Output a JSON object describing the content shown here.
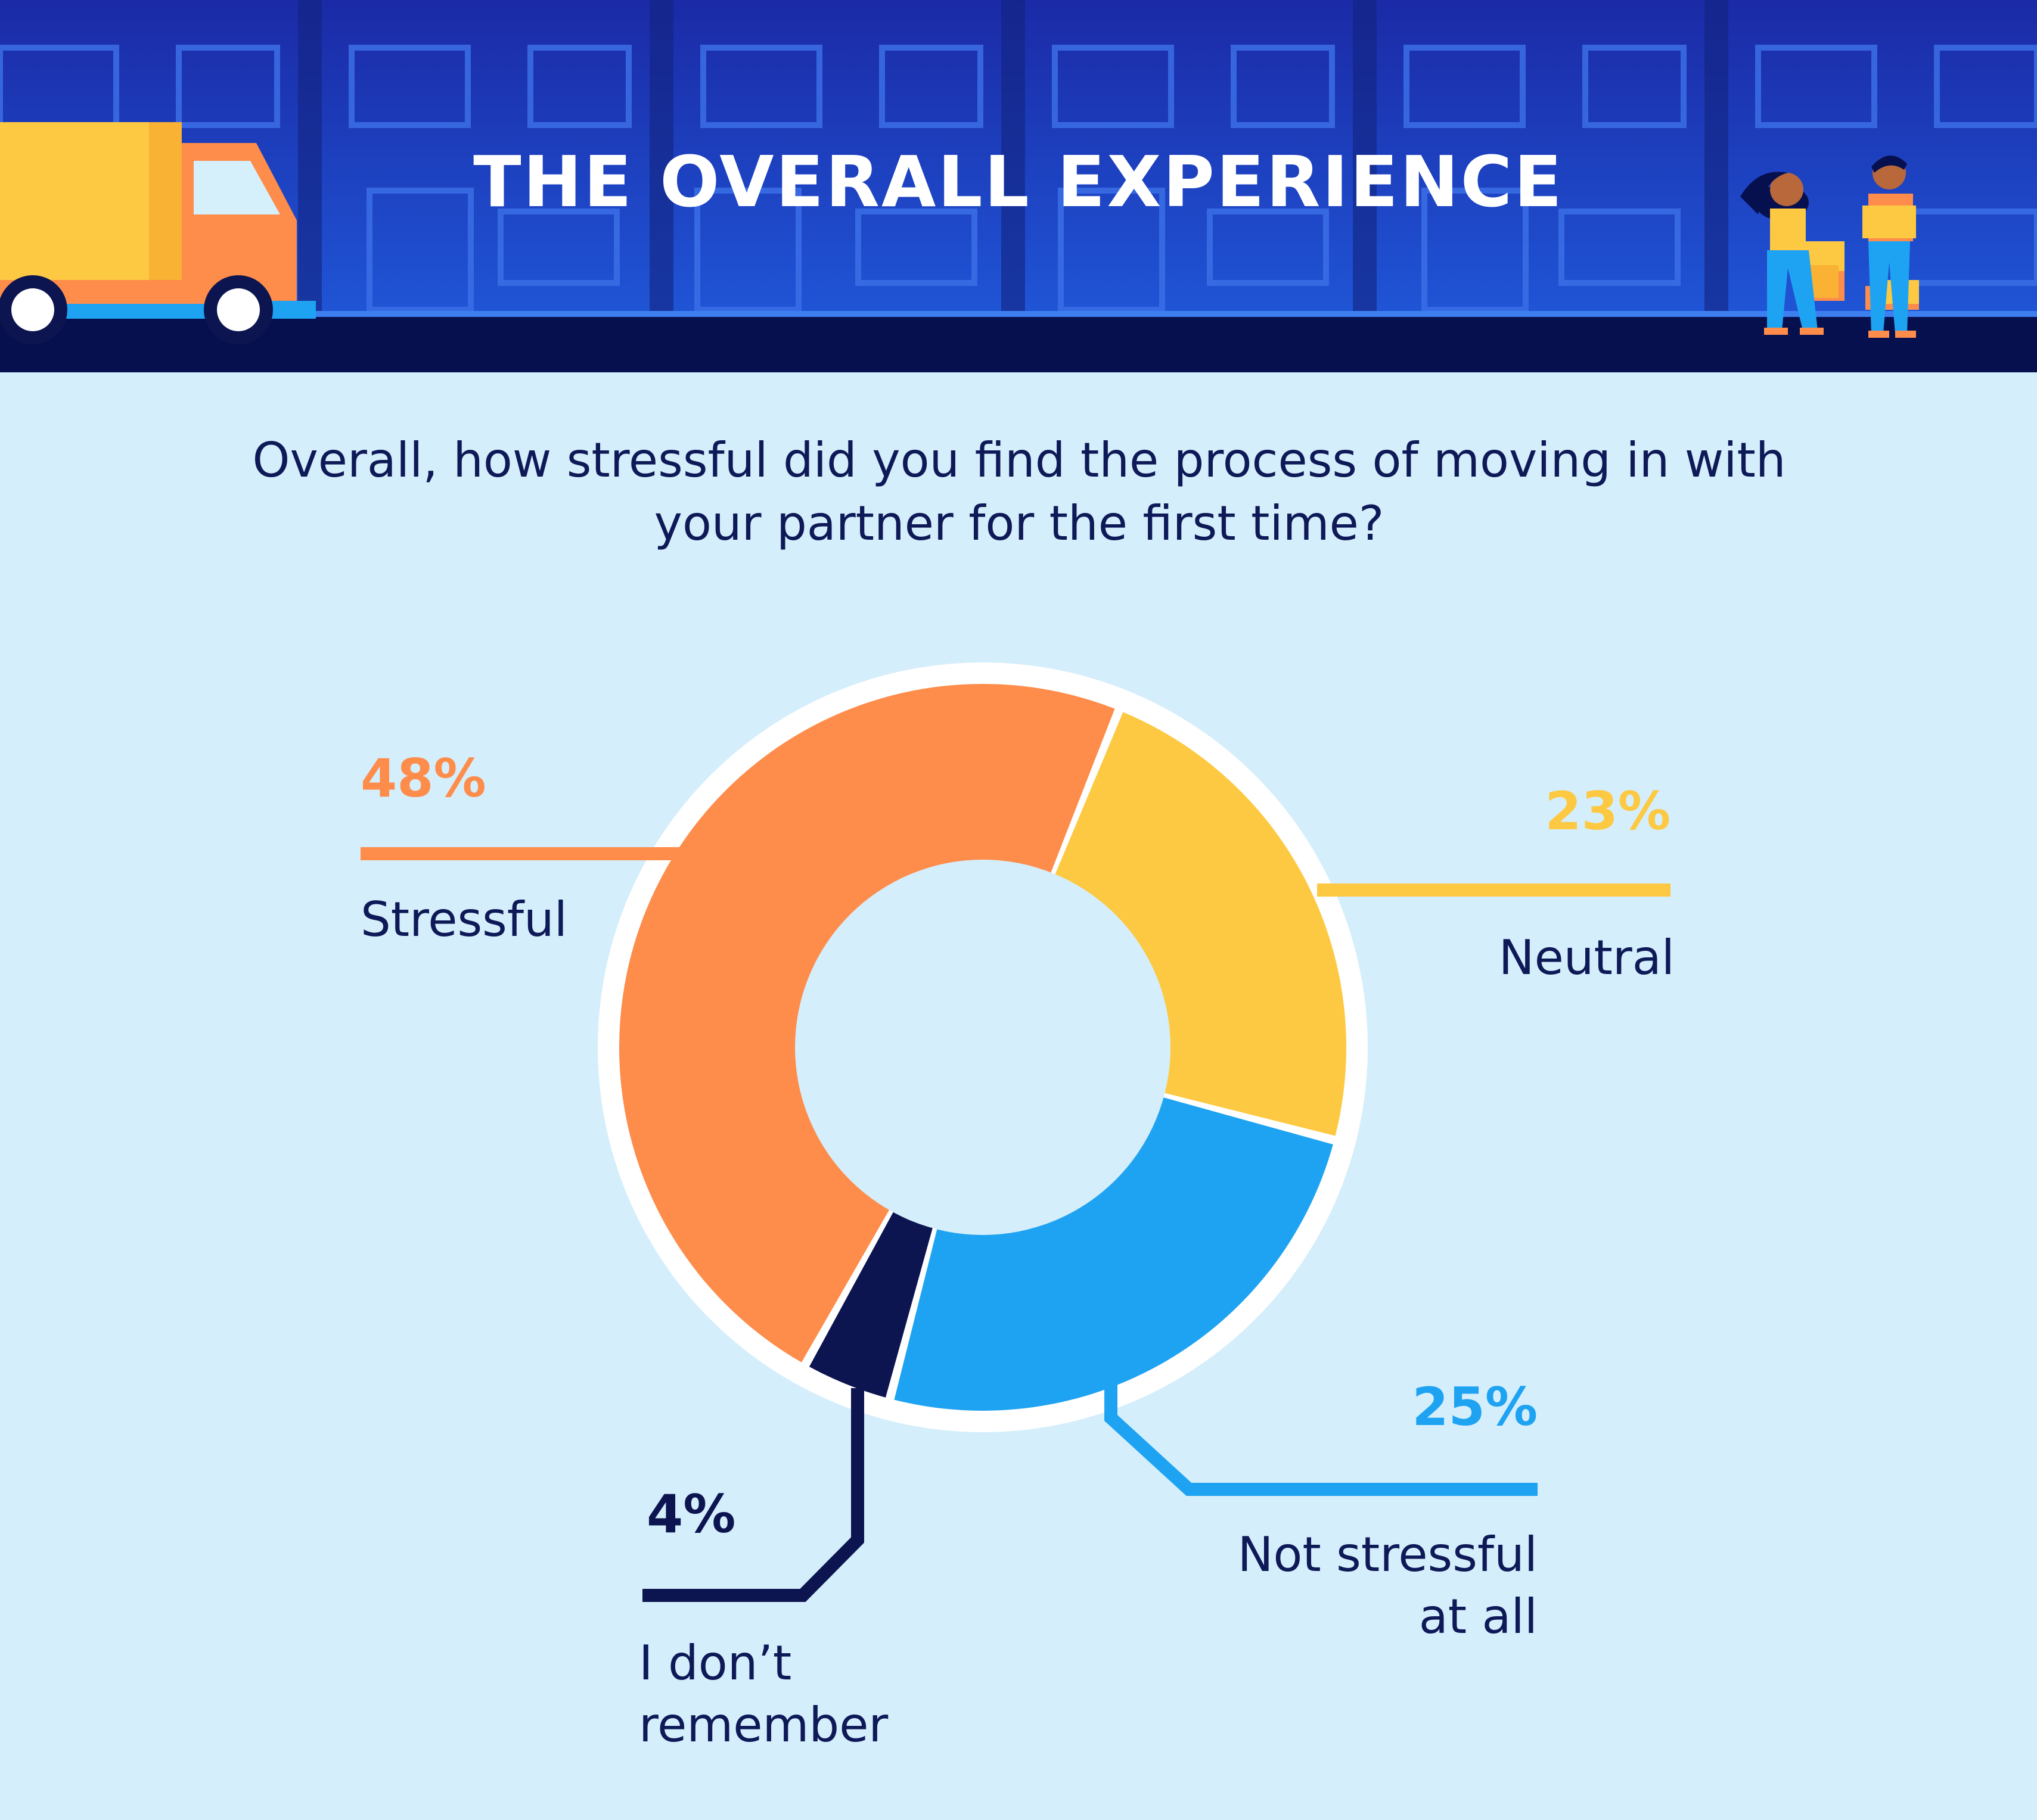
{
  "header": {
    "title": "THE OVERALL EXPERIENCE"
  },
  "colors": {
    "background": "#d5eefb",
    "header_blue": "#1a3fc2",
    "header_dark": "#07104f",
    "stressful": "#fe8c4b",
    "neutral": "#fdc942",
    "not_stressful": "#1ea3f2",
    "dont_remember": "#0c1550",
    "text_dark": "#0e1957"
  },
  "chart_data": {
    "type": "pie",
    "style": "donut",
    "title": "Overall, how stressful did you find the process of moving in with your partner for the first time?",
    "series": [
      {
        "name": "Stressful",
        "value": 48,
        "label": "48%",
        "color": "#fe8c4b"
      },
      {
        "name": "Neutral",
        "value": 23,
        "label": "23%",
        "color": "#fdc942"
      },
      {
        "name": "Not stressful at all",
        "value": 25,
        "label": "25%",
        "color": "#1ea3f2"
      },
      {
        "name": "I don’t remember",
        "value": 4,
        "label": "4%",
        "color": "#0c1550"
      }
    ],
    "labels": {
      "stressful": {
        "pct": "48%",
        "text": "Stressful"
      },
      "neutral": {
        "pct": "23%",
        "text": "Neutral"
      },
      "not_stressful": {
        "pct": "25%",
        "line1": "Not stressful",
        "line2": "at all"
      },
      "dont_remember": {
        "pct": "4%",
        "line1": "I don’t",
        "line2": "remember"
      }
    }
  }
}
